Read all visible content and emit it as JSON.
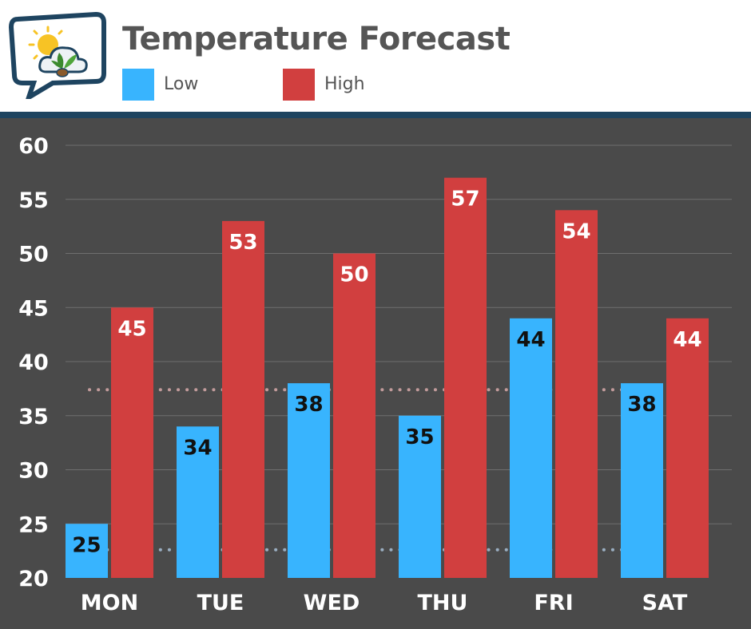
{
  "chart_data": {
    "type": "bar",
    "title": "Temperature Forecast",
    "categories": [
      "MON",
      "TUE",
      "WED",
      "THU",
      "FRI",
      "SAT"
    ],
    "series": [
      {
        "name": "Low",
        "color": "#38b4fe",
        "label_color": "#111111",
        "values": [
          25,
          34,
          38,
          35,
          44,
          38
        ]
      },
      {
        "name": "High",
        "color": "#d13f3f",
        "label_color": "#ffffff",
        "values": [
          45,
          53,
          50,
          57,
          54,
          44
        ]
      }
    ],
    "ylim": [
      20,
      60
    ],
    "yticks": [
      20,
      25,
      30,
      35,
      40,
      45,
      50,
      55,
      60
    ],
    "grid": true,
    "legend": "top-left",
    "reference_lines": [
      {
        "value": 37.4,
        "color": "#c9a0a0",
        "style": "dotted"
      },
      {
        "value": 22.6,
        "color": "#9fb4c8",
        "style": "dotted"
      }
    ],
    "background": "#4a4a4a",
    "text_color": "#ffffff"
  }
}
